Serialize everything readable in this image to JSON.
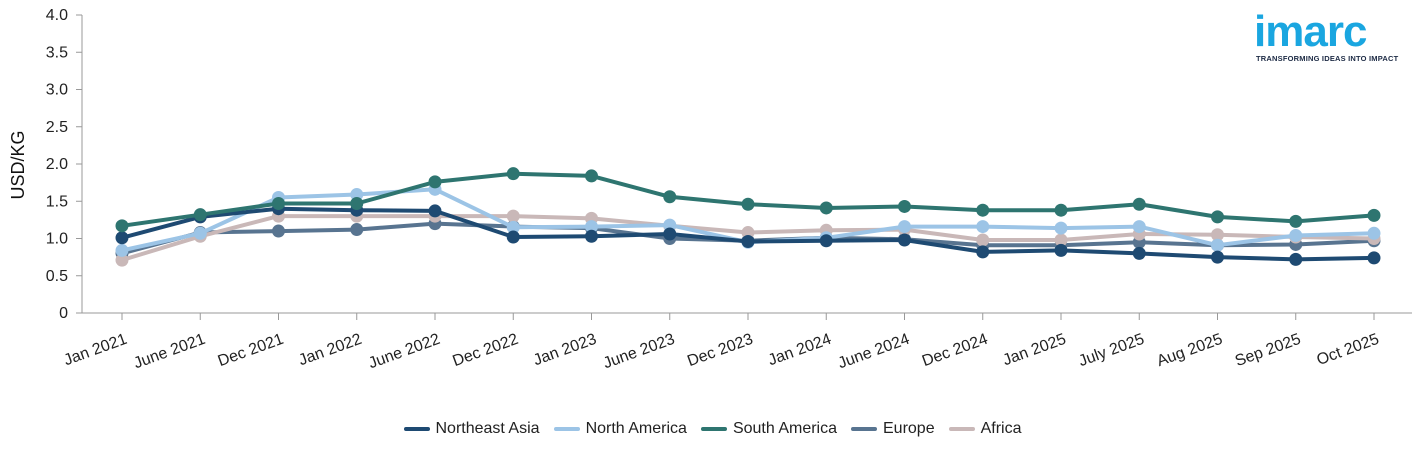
{
  "brand": {
    "logo_text": "imarc",
    "tagline": "TRANSFORMING IDEAS INTO IMPACT",
    "accent": "#1aa6e0"
  },
  "chart_data": {
    "type": "line",
    "title": "",
    "xlabel": "",
    "ylabel": "USD/KG",
    "ylim": [
      0,
      4.0
    ],
    "yticks": [
      "4.0",
      "3.5",
      "3.0",
      "2.5",
      "2.0",
      "1.5",
      "1.0",
      "0.5",
      "0"
    ],
    "grid": false,
    "legend_position": "bottom-center",
    "categories": [
      "Jan 2021",
      "June 2021",
      "Dec 2021",
      "Jan 2022",
      "June 2022",
      "Dec 2022",
      "Jan 2023",
      "June 2023",
      "Dec 2023",
      "Jan 2024",
      "June 2024",
      "Dec 2024",
      "Jan 2025",
      "July 2025",
      "Aug 2025",
      "Sep 2025",
      "Oct 2025"
    ],
    "series": [
      {
        "name": "Europe",
        "color": "#587490",
        "values": [
          0.8,
          1.08,
          1.1,
          1.12,
          1.2,
          1.16,
          1.14,
          1.0,
          0.97,
          1.01,
          0.99,
          0.91,
          0.91,
          0.95,
          0.91,
          0.92,
          0.97
        ]
      },
      {
        "name": "Africa",
        "color": "#c9b8b8",
        "values": [
          0.71,
          1.03,
          1.3,
          1.3,
          1.3,
          1.3,
          1.27,
          1.17,
          1.08,
          1.11,
          1.12,
          0.98,
          0.98,
          1.06,
          1.05,
          1.02,
          1.0
        ]
      },
      {
        "name": "North America",
        "color": "#9cc4e6",
        "values": [
          0.84,
          1.07,
          1.55,
          1.59,
          1.66,
          1.15,
          1.16,
          1.18,
          0.95,
          1.01,
          1.16,
          1.16,
          1.14,
          1.16,
          0.91,
          1.04,
          1.07
        ]
      },
      {
        "name": "Northeast Asia",
        "color": "#1e4a72",
        "values": [
          1.01,
          1.29,
          1.4,
          1.38,
          1.37,
          1.02,
          1.03,
          1.06,
          0.96,
          0.97,
          0.98,
          0.82,
          0.84,
          0.8,
          0.75,
          0.72,
          0.74
        ]
      },
      {
        "name": "South America",
        "color": "#2e7570",
        "values": [
          1.17,
          1.32,
          1.47,
          1.47,
          1.76,
          1.87,
          1.84,
          1.56,
          1.46,
          1.41,
          1.43,
          1.38,
          1.38,
          1.46,
          1.29,
          1.23,
          1.31
        ]
      }
    ],
    "legend_order": [
      "Northeast Asia",
      "North America",
      "South America",
      "Europe",
      "Africa"
    ]
  }
}
